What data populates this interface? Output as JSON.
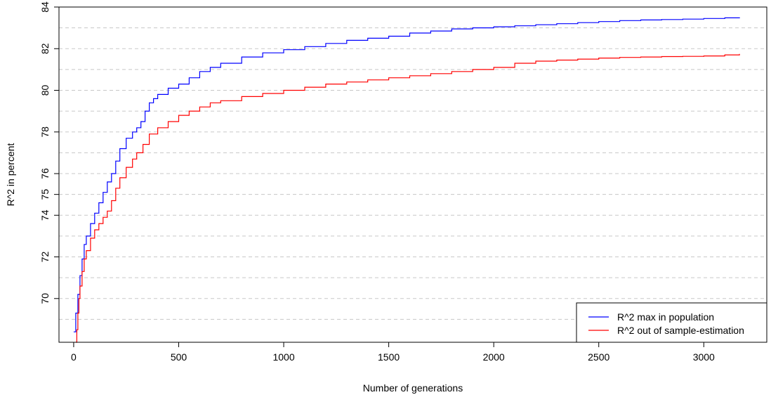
{
  "chart_data": {
    "type": "line",
    "title": "",
    "xlabel": "Number of generations",
    "ylabel": "R^2 in percent",
    "xlim": [
      -70,
      3300
    ],
    "ylim": [
      67.9,
      84.0
    ],
    "x_ticks": [
      0,
      500,
      1000,
      1500,
      2000,
      2500,
      3000
    ],
    "y_ticks": [
      70,
      72,
      74,
      75,
      76,
      78,
      80,
      82,
      84
    ],
    "y_tick_labels": [
      "70",
      "72",
      "74",
      "75",
      "76",
      "78",
      "80",
      "82",
      "84"
    ],
    "gridlines_y": [
      69,
      70,
      71,
      72,
      73,
      74,
      75,
      76,
      77,
      78,
      79,
      80,
      81,
      82,
      83
    ],
    "grid": "horizontal-dashed",
    "legend_position": "bottom-right",
    "series": [
      {
        "name": "R^2 max in population",
        "color": "#0000ff",
        "x": [
          0,
          10,
          20,
          30,
          40,
          50,
          60,
          80,
          100,
          120,
          140,
          160,
          180,
          200,
          220,
          250,
          280,
          300,
          320,
          340,
          360,
          380,
          400,
          450,
          500,
          550,
          600,
          650,
          700,
          800,
          900,
          1000,
          1100,
          1200,
          1300,
          1400,
          1500,
          1600,
          1700,
          1800,
          1900,
          2000,
          2100,
          2200,
          2300,
          2400,
          2500,
          2600,
          2700,
          2800,
          2900,
          3000,
          3100,
          3170
        ],
        "y": [
          68.4,
          69.3,
          70.2,
          71.1,
          71.9,
          72.6,
          73.0,
          73.6,
          74.1,
          74.6,
          75.1,
          75.6,
          76.0,
          76.6,
          77.2,
          77.7,
          78.0,
          78.2,
          78.5,
          79.0,
          79.4,
          79.6,
          79.8,
          80.1,
          80.3,
          80.6,
          80.9,
          81.1,
          81.3,
          81.6,
          81.8,
          81.95,
          82.1,
          82.25,
          82.4,
          82.5,
          82.6,
          82.75,
          82.85,
          82.95,
          83.0,
          83.05,
          83.1,
          83.15,
          83.2,
          83.25,
          83.3,
          83.35,
          83.38,
          83.4,
          83.42,
          83.45,
          83.48,
          83.5
        ]
      },
      {
        "name": "R^2 out of sample-estimation",
        "color": "#ff0000",
        "x": [
          10,
          15,
          20,
          25,
          30,
          40,
          50,
          60,
          80,
          100,
          120,
          140,
          160,
          180,
          200,
          220,
          250,
          280,
          300,
          330,
          360,
          400,
          450,
          500,
          550,
          600,
          650,
          700,
          800,
          900,
          1000,
          1100,
          1200,
          1300,
          1400,
          1500,
          1600,
          1700,
          1800,
          1900,
          2000,
          2100,
          2200,
          2300,
          2400,
          2500,
          2600,
          2700,
          2800,
          2900,
          3000,
          3100,
          3170
        ],
        "y": [
          67.9,
          68.5,
          69.3,
          70.0,
          70.6,
          71.3,
          71.9,
          72.3,
          72.9,
          73.3,
          73.6,
          73.9,
          74.2,
          74.7,
          75.3,
          75.8,
          76.3,
          76.7,
          77.0,
          77.4,
          77.9,
          78.2,
          78.5,
          78.8,
          79.0,
          79.2,
          79.4,
          79.5,
          79.7,
          79.85,
          80.0,
          80.15,
          80.3,
          80.4,
          80.5,
          80.6,
          80.7,
          80.8,
          80.9,
          81.0,
          81.1,
          81.3,
          81.4,
          81.45,
          81.5,
          81.55,
          81.58,
          81.6,
          81.62,
          81.63,
          81.65,
          81.7,
          81.75
        ]
      }
    ]
  }
}
